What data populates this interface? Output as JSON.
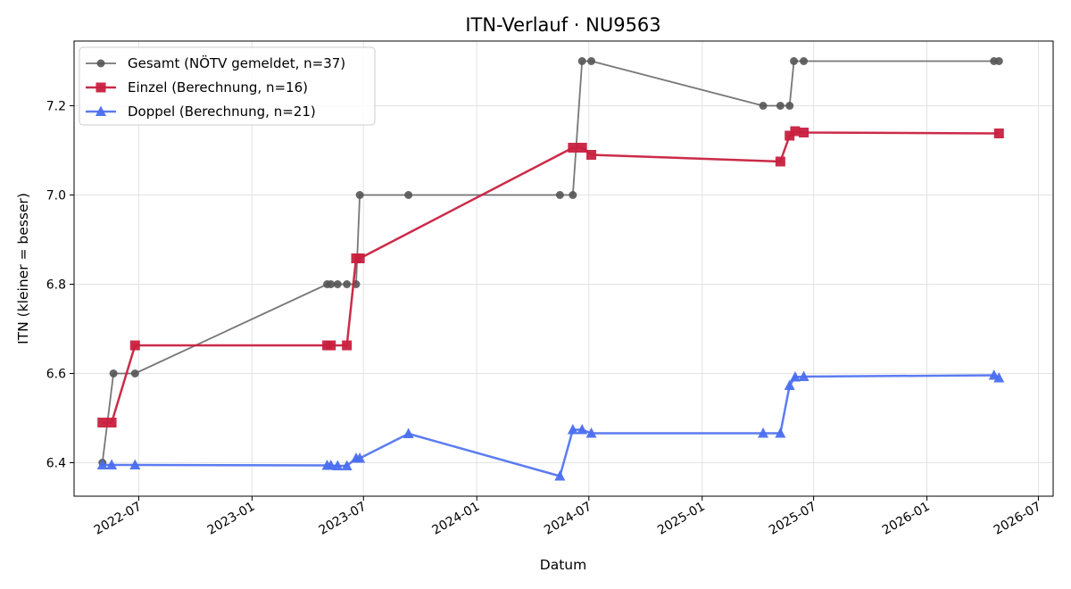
{
  "chart_data": {
    "type": "line",
    "title": "ITN-Verlauf · NU9563",
    "xlabel": "Datum",
    "ylabel": "ITN  (kleiner = besser)",
    "x_type": "date",
    "xlim": [
      "2022-03-18",
      "2026-07-25"
    ],
    "ylim": [
      6.325,
      7.345
    ],
    "x_ticks": [
      "2022-07",
      "2023-01",
      "2023-07",
      "2024-01",
      "2024-07",
      "2025-01",
      "2025-07",
      "2026-01",
      "2026-07"
    ],
    "y_ticks": [
      "6.4",
      "6.6",
      "6.8",
      "7.0",
      "7.2"
    ],
    "grid": true,
    "legend_position": "top-left",
    "series": [
      {
        "name": "Gesamt (NÖTV gemeldet, n=37)",
        "color": "#555555",
        "marker": "circle",
        "points": [
          [
            "2022-05-03",
            6.4
          ],
          [
            "2022-05-21",
            6.6
          ],
          [
            "2022-06-25",
            6.6
          ],
          [
            "2023-05-03",
            6.8
          ],
          [
            "2023-05-09",
            6.8
          ],
          [
            "2023-05-20",
            6.8
          ],
          [
            "2023-06-04",
            6.8
          ],
          [
            "2023-06-19",
            6.8
          ],
          [
            "2023-06-25",
            7.0
          ],
          [
            "2023-09-12",
            7.0
          ],
          [
            "2024-05-15",
            7.0
          ],
          [
            "2024-06-05",
            7.0
          ],
          [
            "2024-06-20",
            7.3
          ],
          [
            "2024-07-05",
            7.3
          ],
          [
            "2025-04-10",
            7.2
          ],
          [
            "2025-05-08",
            7.2
          ],
          [
            "2025-05-23",
            7.2
          ],
          [
            "2025-05-30",
            7.3
          ],
          [
            "2025-06-15",
            7.3
          ],
          [
            "2026-04-20",
            7.3
          ],
          [
            "2026-04-28",
            7.3
          ]
        ]
      },
      {
        "name": "Einzel (Berechnung, n=16)",
        "color": "#c8203f",
        "marker": "square",
        "points": [
          [
            "2022-05-03",
            6.49
          ],
          [
            "2022-05-18",
            6.49
          ],
          [
            "2022-06-25",
            6.663
          ],
          [
            "2023-05-03",
            6.663
          ],
          [
            "2023-05-09",
            6.663
          ],
          [
            "2023-06-04",
            6.663
          ],
          [
            "2023-06-19",
            6.858
          ],
          [
            "2023-06-25",
            6.858
          ],
          [
            "2024-06-05",
            7.106
          ],
          [
            "2024-06-20",
            7.106
          ],
          [
            "2024-07-05",
            7.09
          ],
          [
            "2025-05-08",
            7.075
          ],
          [
            "2025-05-23",
            7.133
          ],
          [
            "2025-06-01",
            7.143
          ],
          [
            "2025-06-15",
            7.14
          ],
          [
            "2026-04-28",
            7.138
          ]
        ]
      },
      {
        "name": "Doppel (Berechnung, n=21)",
        "color": "#4a6ef0",
        "marker": "triangle",
        "points": [
          [
            "2022-05-03",
            6.395
          ],
          [
            "2022-05-18",
            6.395
          ],
          [
            "2022-06-25",
            6.395
          ],
          [
            "2023-05-03",
            6.394
          ],
          [
            "2023-05-09",
            6.394
          ],
          [
            "2023-05-20",
            6.393
          ],
          [
            "2023-06-04",
            6.393
          ],
          [
            "2023-06-19",
            6.41
          ],
          [
            "2023-06-25",
            6.41
          ],
          [
            "2023-09-12",
            6.465
          ],
          [
            "2024-05-15",
            6.37
          ],
          [
            "2024-06-05",
            6.474
          ],
          [
            "2024-06-20",
            6.474
          ],
          [
            "2024-07-05",
            6.466
          ],
          [
            "2025-04-10",
            6.466
          ],
          [
            "2025-05-08",
            6.466
          ],
          [
            "2025-05-23",
            6.573
          ],
          [
            "2025-06-01",
            6.592
          ],
          [
            "2025-06-15",
            6.593
          ],
          [
            "2026-04-20",
            6.596
          ],
          [
            "2026-04-28",
            6.59
          ]
        ]
      }
    ]
  }
}
